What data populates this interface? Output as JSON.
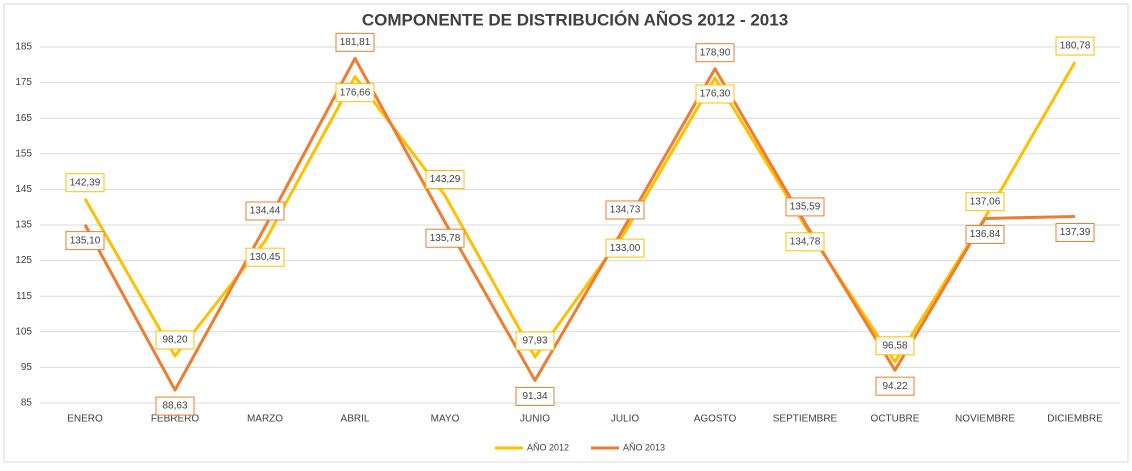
{
  "chart_data": {
    "type": "line",
    "title": "COMPONENTE DE DISTRIBUCIÓN AÑOS 2012 - 2013",
    "categories": [
      "ENERO",
      "FEBRERO",
      "MARZO",
      "ABRIL",
      "MAYO",
      "JUNIO",
      "JULIO",
      "AGOSTO",
      "SEPTIEMBRE",
      "OCTUBRE",
      "NOVIEMBRE",
      "DICIEMBRE"
    ],
    "series": [
      {
        "name": "AÑO 2012",
        "color": "#FFC000",
        "values": [
          142.39,
          98.2,
          130.45,
          176.66,
          143.29,
          97.93,
          133.0,
          176.3,
          134.78,
          96.58,
          137.06,
          180.78
        ],
        "value_labels": [
          "142,39",
          "98,20",
          "130,45",
          "176,66",
          "143,29",
          "97,93",
          "133,00",
          "176,30",
          "134,78",
          "96,58",
          "137,06",
          "180,78"
        ]
      },
      {
        "name": "AÑO 2013",
        "color": "#ED7D31",
        "values": [
          135.1,
          88.63,
          134.44,
          181.81,
          135.78,
          91.34,
          134.73,
          178.9,
          135.59,
          94.22,
          136.84,
          137.39
        ],
        "value_labels": [
          "135,10",
          "88,63",
          "134,44",
          "181,81",
          "135,78",
          "91,34",
          "134,73",
          "178,90",
          "135,59",
          "94,22",
          "136,84",
          "137,39"
        ]
      }
    ],
    "ylim": [
      85,
      185
    ],
    "yticks": [
      85,
      95,
      105,
      115,
      125,
      135,
      145,
      155,
      165,
      175,
      185
    ],
    "grid": true,
    "legend": "bottom"
  }
}
